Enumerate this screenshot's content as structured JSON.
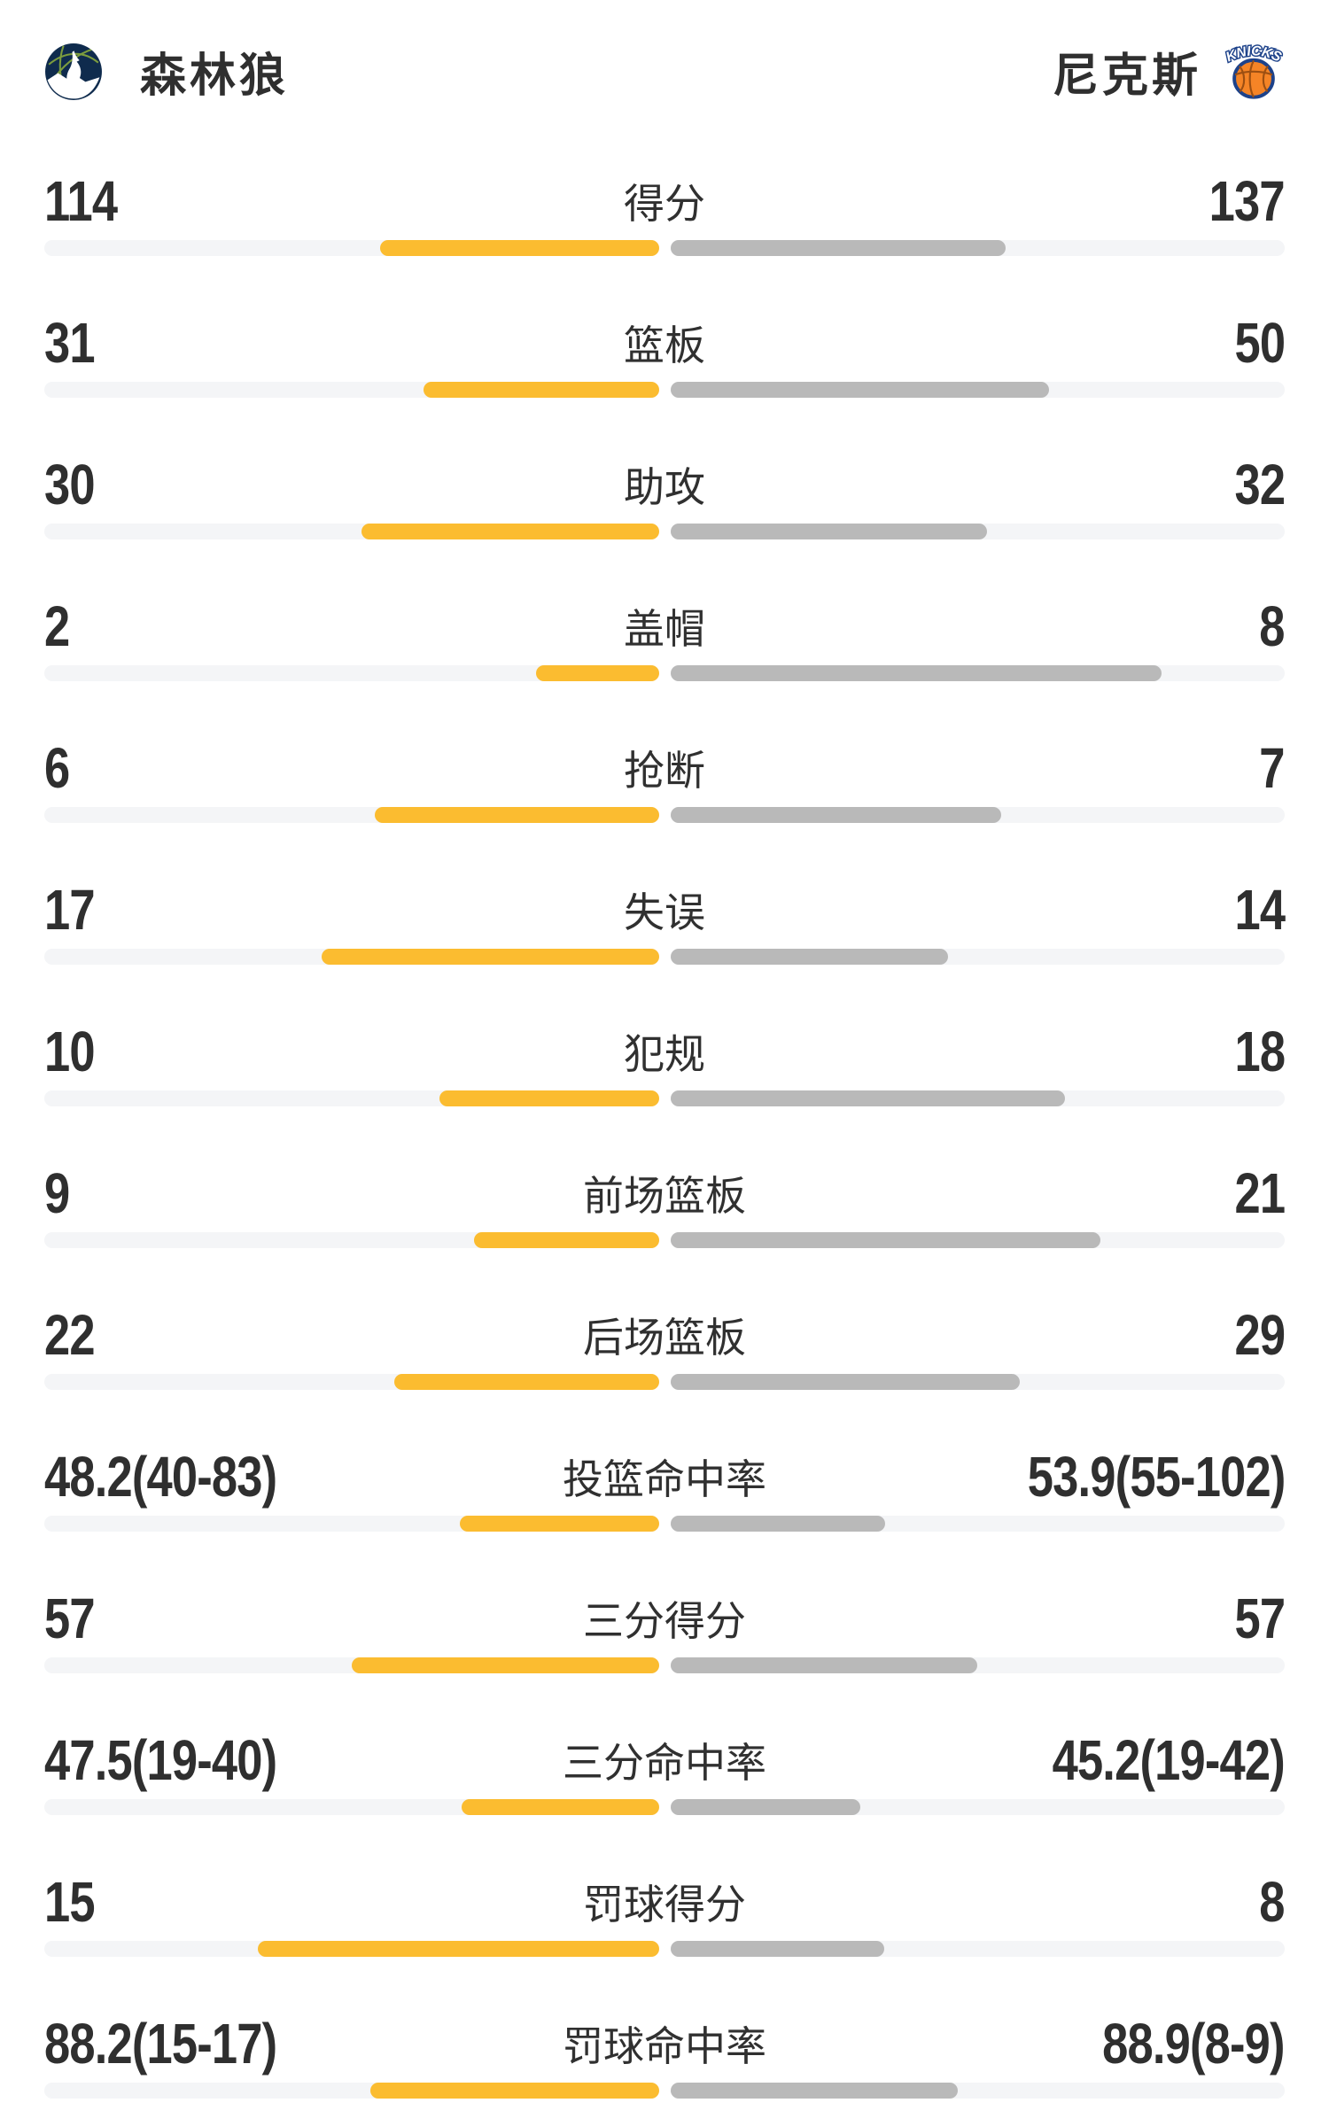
{
  "header": {
    "left_team": {
      "name": "森林狼",
      "logo_icon": "timberwolves-logo"
    },
    "right_team": {
      "name": "尼克斯",
      "logo_icon": "knicks-logo"
    }
  },
  "colors": {
    "left_bar": "#fbbc30",
    "right_bar": "#b9b9b9",
    "bar_track": "#f4f5f7",
    "text": "#2f2f2f",
    "timberwolves_navy": "#0f2b4d",
    "timberwolves_green": "#7c9c3e",
    "knicks_blue": "#1d428a",
    "knicks_orange": "#f58426"
  },
  "chart_data": {
    "type": "bar",
    "subtype": "tornado-comparison",
    "legend_position": "header",
    "grid": false,
    "categories": [
      "得分",
      "篮板",
      "助攻",
      "盖帽",
      "抢断",
      "失误",
      "犯规",
      "前场篮板",
      "后场篮板",
      "投篮命中率",
      "三分得分",
      "三分命中率",
      "罚球得分",
      "罚球命中率"
    ],
    "series": [
      {
        "name": "森林狼",
        "values": [
          114,
          31,
          30,
          2,
          6,
          17,
          10,
          9,
          22,
          48.2,
          57,
          47.5,
          15,
          88.2
        ]
      },
      {
        "name": "尼克斯",
        "values": [
          137,
          50,
          32,
          8,
          7,
          14,
          18,
          21,
          29,
          53.9,
          57,
          45.2,
          8,
          88.9
        ]
      }
    ],
    "rows": [
      {
        "label": "得分",
        "left_text": "114",
        "right_text": "137",
        "left_value": 114,
        "right_value": 137,
        "left_pct": 45.4,
        "right_pct": 54.6
      },
      {
        "label": "篮板",
        "left_text": "31",
        "right_text": "50",
        "left_value": 31,
        "right_value": 50,
        "left_pct": 38.3,
        "right_pct": 61.7
      },
      {
        "label": "助攻",
        "left_text": "30",
        "right_text": "32",
        "left_value": 30,
        "right_value": 32,
        "left_pct": 48.4,
        "right_pct": 51.6
      },
      {
        "label": "盖帽",
        "left_text": "2",
        "right_text": "8",
        "left_value": 2,
        "right_value": 8,
        "left_pct": 20.0,
        "right_pct": 80.0
      },
      {
        "label": "抢断",
        "left_text": "6",
        "right_text": "7",
        "left_value": 6,
        "right_value": 7,
        "left_pct": 46.2,
        "right_pct": 53.8
      },
      {
        "label": "失误",
        "left_text": "17",
        "right_text": "14",
        "left_value": 17,
        "right_value": 14,
        "left_pct": 54.8,
        "right_pct": 45.2
      },
      {
        "label": "犯规",
        "left_text": "10",
        "right_text": "18",
        "left_value": 10,
        "right_value": 18,
        "left_pct": 35.7,
        "right_pct": 64.3
      },
      {
        "label": "前场篮板",
        "left_text": "9",
        "right_text": "21",
        "left_value": 9,
        "right_value": 21,
        "left_pct": 30.0,
        "right_pct": 70.0
      },
      {
        "label": "后场篮板",
        "left_text": "22",
        "right_text": "29",
        "left_value": 22,
        "right_value": 29,
        "left_pct": 43.1,
        "right_pct": 56.9
      },
      {
        "label": "投篮命中率",
        "left_text": "48.2(40-83)",
        "right_text": "53.9(55-102)",
        "left_value": 48.2,
        "right_value": 53.9,
        "left_pct": 32.4,
        "right_pct": 34.9
      },
      {
        "label": "三分得分",
        "left_text": "57",
        "right_text": "57",
        "left_value": 57,
        "right_value": 57,
        "left_pct": 50.0,
        "right_pct": 50.0
      },
      {
        "label": "三分命中率",
        "left_text": "47.5(19-40)",
        "right_text": "45.2(19-42)",
        "left_value": 47.5,
        "right_value": 45.2,
        "left_pct": 32.1,
        "right_pct": 31.0
      },
      {
        "label": "罚球得分",
        "left_text": "15",
        "right_text": "8",
        "left_value": 15,
        "right_value": 8,
        "left_pct": 65.2,
        "right_pct": 34.8
      },
      {
        "label": "罚球命中率",
        "left_text": "88.2(15-17)",
        "right_text": "88.9(8-9)",
        "left_value": 88.2,
        "right_value": 88.9,
        "left_pct": 47.0,
        "right_pct": 46.8
      }
    ]
  }
}
